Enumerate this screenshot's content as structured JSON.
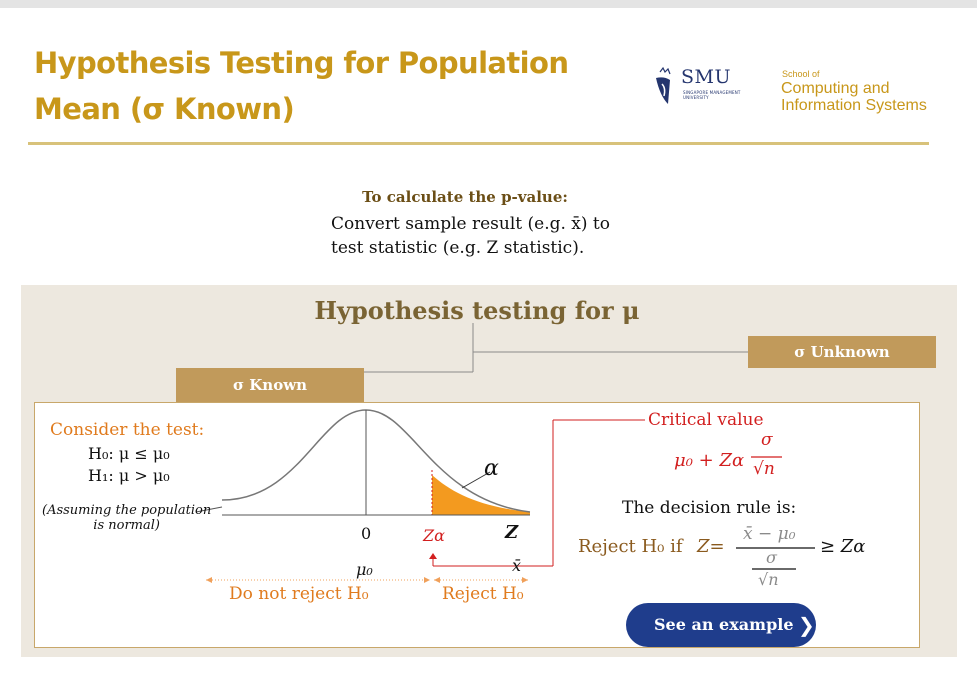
{
  "header": {
    "title_line1": "Hypothesis Testing for Population",
    "title_line2": "Mean (σ Known)",
    "logo": {
      "name": "SMU",
      "subtitle_line1": "SINGAPORE MANAGEMENT",
      "subtitle_line2": "UNIVERSITY"
    },
    "school": {
      "small": "School of",
      "line1": "Computing and",
      "line2": "Information Systems"
    }
  },
  "intro": {
    "heading": "To calculate the p-value:",
    "line1": "Convert sample result (e.g. x̄) to",
    "line2": "test statistic (e.g. Z statistic)."
  },
  "panel": {
    "title": "Hypothesis testing for μ",
    "tab_unknown": "σ Unknown",
    "tab_known": "σ Known"
  },
  "test": {
    "consider": "Consider the test:",
    "h0": "H₀: μ ≤ μ₀",
    "h1": "H₁: μ > μ₀",
    "assume_line1": "(Assuming the population",
    "assume_line2": "is normal)"
  },
  "curve": {
    "alpha": "α",
    "zero": "0",
    "z_alpha": "Zα",
    "z": "Z",
    "mu0": "μ₀",
    "xbar": "x̄",
    "do_not_reject": "Do not reject H₀",
    "reject": "Reject H₀"
  },
  "decision": {
    "critical_value": "Critical value",
    "cv_mu": "μ₀ + Zα",
    "cv_num": "σ",
    "cv_den": "√n",
    "rule_label": "The decision rule is:",
    "reject_if": "Reject H₀ if",
    "z_eq": "Z=",
    "num": "x̄ − μ₀",
    "sigma": "σ",
    "sqrt_n": "√n",
    "geq": "≥ Zα"
  },
  "button": {
    "label": "See an example",
    "chevron": "❯"
  },
  "colors": {
    "gold": "#c8971a",
    "orange": "#f39a1f",
    "red": "#d21f1f",
    "navy": "#1f3d8c",
    "tab": "#c19a5b",
    "panel": "#ede8df"
  }
}
